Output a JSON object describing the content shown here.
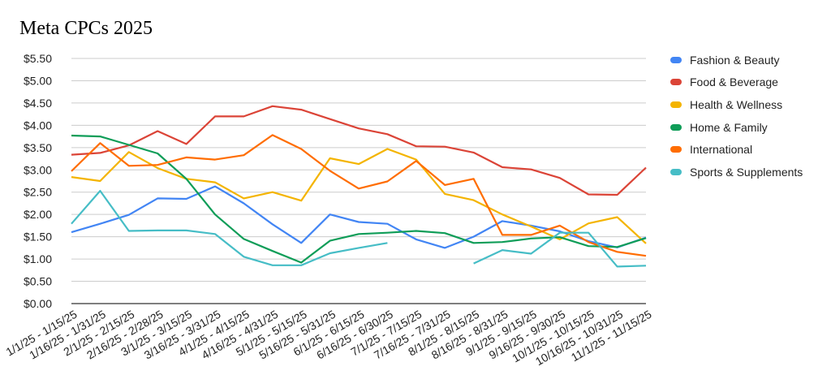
{
  "chart_data": {
    "type": "line",
    "title": "Meta CPCs 2025",
    "xlabel": "",
    "ylabel": "",
    "ylim": [
      0,
      5.5
    ],
    "yticks": [
      "$0.00",
      "$0.50",
      "$1.00",
      "$1.50",
      "$2.00",
      "$2.50",
      "$3.00",
      "$3.50",
      "$4.00",
      "$4.50",
      "$5.00",
      "$5.50"
    ],
    "grid": true,
    "legend_position": "right",
    "categories": [
      "1/1/25 - 1/15/25",
      "1/16/25 - 1/31/25",
      "2/1/25 - 2/15/25",
      "2/16/25 - 2/28/25",
      "3/1/25 - 3/15/25",
      "3/16/25 - 3/31/25",
      "4/1/25 - 4/15/25",
      "4/16/25 - 4/31/25",
      "5/1/25 - 5/15/25",
      "5/16/25 - 5/31/25",
      "6/1/25 - 6/15/25",
      "6/16/25 - 6/30/25",
      "7/1/25 - 7/15/25",
      "7/16/25 - 7/31/25",
      "8/1/25 - 8/15/25",
      "8/16/25 - 8/31/25",
      "9/1/25 - 9/15/25",
      "9/16/25 - 9/30/25",
      "10/1/25 - 10/15/25",
      "10/16/25 - 10/31/25",
      "11/1/25 - 11/15/25"
    ],
    "series": [
      {
        "name": "Fashion & Beauty",
        "color": "#4285f4",
        "values": [
          1.6,
          1.79,
          1.99,
          2.36,
          2.35,
          2.63,
          2.25,
          1.78,
          1.36,
          2.0,
          1.83,
          1.79,
          1.44,
          1.25,
          1.5,
          1.85,
          1.75,
          1.62,
          1.4,
          1.26,
          1.48
        ]
      },
      {
        "name": "Food & Beverage",
        "color": "#db4437",
        "values": [
          3.34,
          3.38,
          3.55,
          3.87,
          3.58,
          4.2,
          4.2,
          4.43,
          4.35,
          4.14,
          3.93,
          3.8,
          3.53,
          3.52,
          3.39,
          3.06,
          3.01,
          2.82,
          2.45,
          2.44,
          3.05
        ]
      },
      {
        "name": "Health & Wellness",
        "color": "#f4b400",
        "values": [
          2.84,
          2.75,
          3.4,
          3.04,
          2.8,
          2.72,
          2.36,
          2.5,
          2.31,
          3.26,
          3.13,
          3.47,
          3.23,
          2.46,
          2.32,
          2.0,
          1.73,
          1.44,
          1.8,
          1.94,
          1.35
        ]
      },
      {
        "name": "Home & Family",
        "color": "#0f9d58",
        "values": [
          3.77,
          3.75,
          3.56,
          3.37,
          2.8,
          2.0,
          1.45,
          1.18,
          0.92,
          1.41,
          1.56,
          1.59,
          1.63,
          1.58,
          1.36,
          1.38,
          1.46,
          1.49,
          1.29,
          1.27,
          1.47
        ]
      },
      {
        "name": "International",
        "color": "#ff6d01",
        "values": [
          2.97,
          3.6,
          3.09,
          3.11,
          3.28,
          3.23,
          3.33,
          3.78,
          3.47,
          2.98,
          2.58,
          2.74,
          3.2,
          2.66,
          2.8,
          1.54,
          1.54,
          1.75,
          1.38,
          1.16,
          1.07
        ]
      },
      {
        "name": "Sports & Supplements",
        "color": "#46bdc6",
        "values": [
          1.79,
          2.53,
          1.63,
          1.64,
          1.64,
          1.56,
          1.05,
          0.86,
          0.86,
          1.13,
          1.25,
          1.36,
          null,
          null,
          0.9,
          1.2,
          1.12,
          1.59,
          1.59,
          0.83,
          0.85
        ]
      }
    ]
  }
}
